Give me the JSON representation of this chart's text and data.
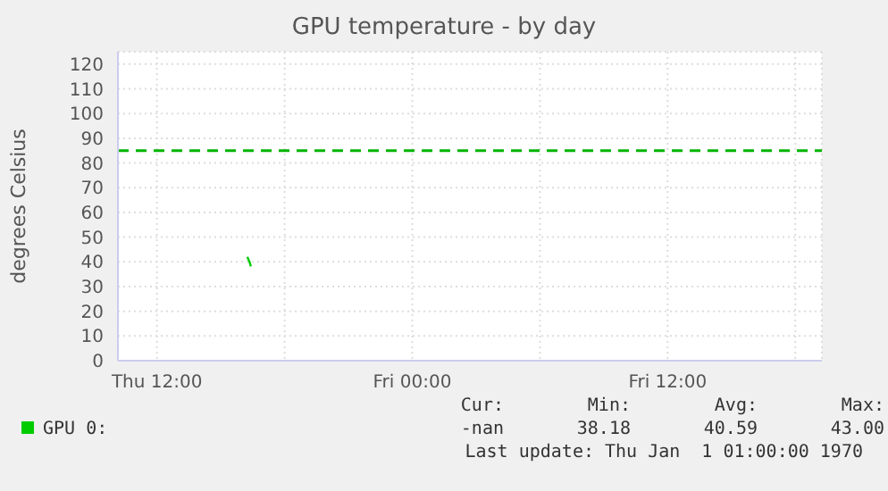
{
  "chart_data": {
    "type": "line",
    "title": "GPU temperature - by day",
    "ylabel": "degrees Celsius",
    "series": [
      {
        "name": "GPU 0:",
        "color": "#00cc00",
        "x": [
          "1970-01-01T16:15",
          "1970-01-01T16:21",
          "1970-01-01T16:25"
        ],
        "values": [
          42,
          40,
          38.2
        ]
      }
    ],
    "xlim": [
      "1970-01-01T10:10",
      "1970-01-02T19:15"
    ],
    "xticks": [
      {
        "value": "1970-01-01T12:00",
        "label": "Thu 12:00"
      },
      {
        "value": "1970-01-01T18:00",
        "label": null
      },
      {
        "value": "1970-01-02T00:00",
        "label": "Fri 00:00"
      },
      {
        "value": "1970-01-02T06:00",
        "label": null
      },
      {
        "value": "1970-01-02T12:00",
        "label": "Fri 12:00"
      },
      {
        "value": "1970-01-02T18:00",
        "label": null
      }
    ],
    "ylim": [
      0,
      125
    ],
    "yticks": [
      0,
      10,
      20,
      30,
      40,
      50,
      60,
      70,
      80,
      90,
      100,
      110,
      120
    ],
    "ref_lines": [
      {
        "axis": "y",
        "value": 85,
        "color": "#00b400",
        "line_style": "dashed"
      }
    ],
    "grid": true,
    "legend": "bottom",
    "marker": "none",
    "annotations": [
      "Cur:",
      "Min:",
      "Avg:",
      "Max:",
      "-nan",
      "38.18",
      "40.59",
      "43.00",
      "Last update: Thu Jan  1 01:00:00 1970"
    ]
  }
}
